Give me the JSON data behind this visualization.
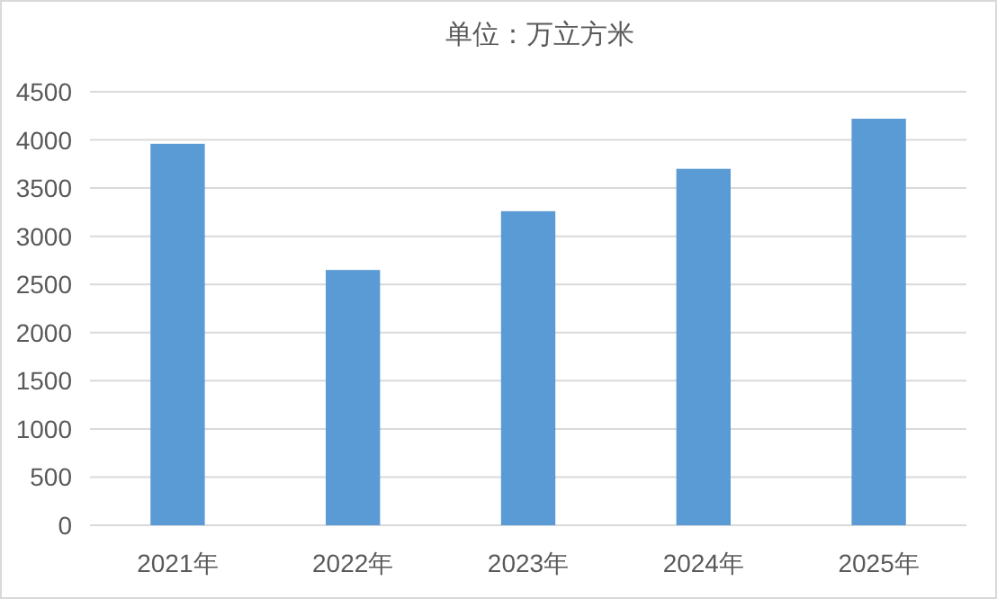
{
  "chart_data": {
    "type": "bar",
    "title": "单位：万立方米",
    "categories": [
      "2021年",
      "2022年",
      "2023年",
      "2024年",
      "2025年"
    ],
    "values": [
      3960,
      2650,
      3260,
      3700,
      4220
    ],
    "color": "#5b9bd5",
    "ylim": [
      0,
      4500
    ],
    "yticks": [
      0,
      500,
      1000,
      1500,
      2000,
      2500,
      3000,
      3500,
      4000,
      4500
    ],
    "grid": "y"
  }
}
